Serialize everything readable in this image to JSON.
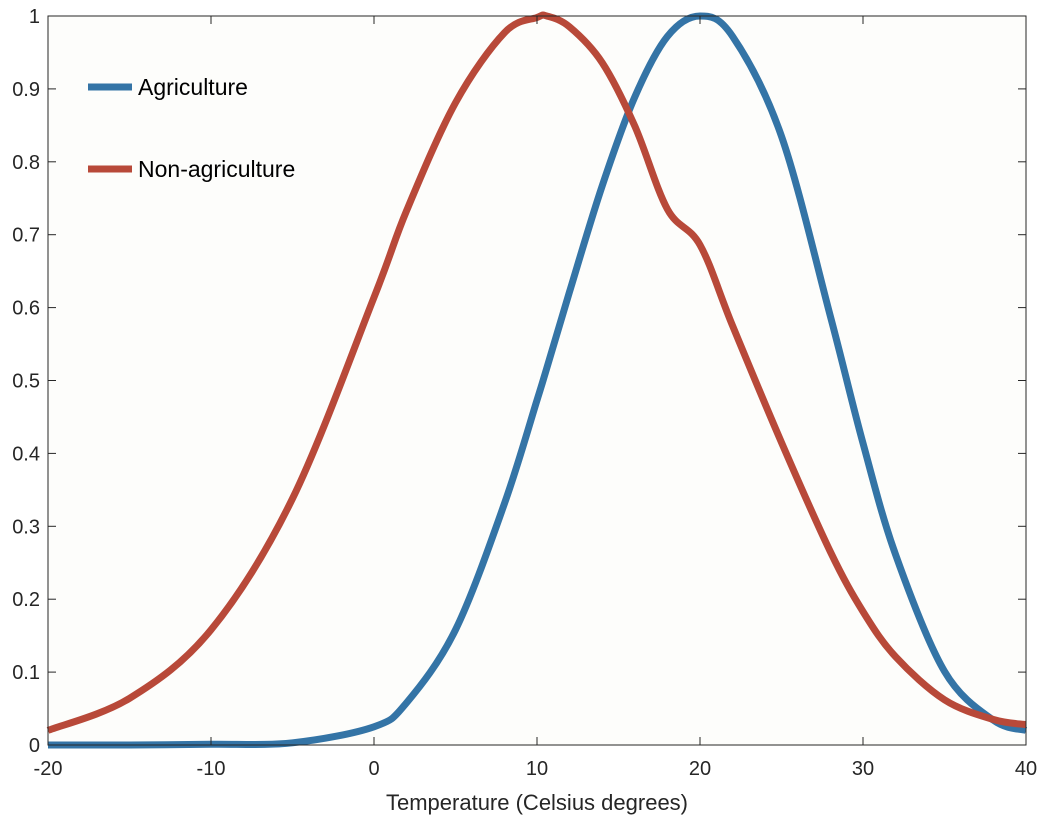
{
  "chart_data": {
    "type": "line",
    "title": "",
    "xlabel": "Temperature (Celsius degrees)",
    "ylabel": "",
    "xlim": [
      -20,
      40
    ],
    "ylim": [
      0,
      1
    ],
    "x_ticks": [
      -20,
      -10,
      0,
      10,
      20,
      30,
      40
    ],
    "x_tick_labels": [
      "-20",
      "-10",
      "0",
      "10",
      "20",
      "30",
      "40"
    ],
    "y_ticks": [
      0,
      0.1,
      0.2,
      0.3,
      0.4,
      0.5,
      0.6,
      0.7,
      0.8,
      0.9,
      1
    ],
    "y_tick_labels": [
      "0",
      "0.1",
      "0.2",
      "0.3",
      "0.4",
      "0.5",
      "0.6",
      "0.7",
      "0.8",
      "0.9",
      "1"
    ],
    "grid": false,
    "legend_position": "top-left",
    "background_color": "#fdfdfb",
    "x": [
      -20,
      -15,
      -10,
      -5,
      0,
      2,
      5,
      8,
      10,
      10.6,
      12,
      14,
      16,
      18,
      20,
      22,
      25,
      28,
      30,
      32,
      35,
      38,
      40
    ],
    "series": [
      {
        "name": "Agriculture",
        "color": "#3474a6",
        "values": [
          0.0,
          0.0,
          0.001,
          0.003,
          0.025,
          0.058,
          0.158,
          0.331,
          0.473,
          0.517,
          0.622,
          0.767,
          0.889,
          0.972,
          1.0,
          0.972,
          0.835,
          0.588,
          0.414,
          0.261,
          0.101,
          0.034,
          0.02
        ]
      },
      {
        "name": "Non-agriculture",
        "color": "#b84939",
        "values": [
          0.02,
          0.064,
          0.158,
          0.338,
          0.614,
          0.733,
          0.881,
          0.977,
          0.998,
          1.0,
          0.985,
          0.936,
          0.849,
          0.735,
          0.686,
          0.575,
          0.415,
          0.265,
          0.183,
          0.121,
          0.062,
          0.035,
          0.028
        ]
      }
    ]
  }
}
